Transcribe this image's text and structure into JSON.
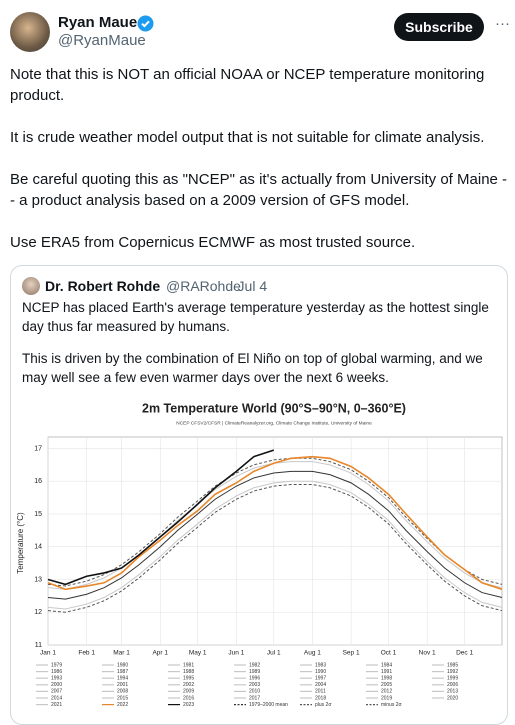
{
  "tweet": {
    "author": "Ryan Maue",
    "handle": "@RyanMaue",
    "button": "Subscribe",
    "more": "···",
    "paragraphs": [
      "Note that this is NOT an official NOAA or NCEP temperature monitoring product.",
      "It is crude weather model output that is not suitable for climate analysis.",
      "Be careful quoting this as \"NCEP\" as it's actually from University of Maine -- a product analysis based on a 2009 version of GFS model.",
      "Use ERA5 from Copernicus ECMWF as most trusted source."
    ]
  },
  "quote": {
    "author": "Dr. Robert Rohde",
    "handle": "@RARohde",
    "date": "· Jul 4",
    "paragraphs": [
      "NCEP has placed Earth's average temperature yesterday as the hottest single day thus far measured by humans.",
      "This is driven by the combination of El Niño on top of global warming, and we may well see a few even warmer days over the next 6 weeks."
    ]
  },
  "chart_data": {
    "type": "line",
    "title": "2m Temperature World (90°S–90°N, 0–360°E)",
    "subtitle": "NCEP CFSV2/CFSR | ClimateReanalyzer.org, Climate Change Institute, University of Maine",
    "y_label": "Temperature (°C)",
    "grid": true,
    "xlim": [
      1,
      365
    ],
    "ylim": [
      11,
      17.35
    ],
    "yticks": [
      11,
      12,
      13,
      14,
      15,
      16,
      17
    ],
    "xticks": [
      {
        "value": 1,
        "label": "Jan 1"
      },
      {
        "value": 32,
        "label": "Feb 1"
      },
      {
        "value": 60,
        "label": "Mar 1"
      },
      {
        "value": 91,
        "label": "Apr 1"
      },
      {
        "value": 121,
        "label": "May 1"
      },
      {
        "value": 152,
        "label": "Jun 1"
      },
      {
        "value": 182,
        "label": "Jul 1"
      },
      {
        "value": 213,
        "label": "Aug 1"
      },
      {
        "value": 244,
        "label": "Sep 1"
      },
      {
        "value": 274,
        "label": "Oct 1"
      },
      {
        "value": 305,
        "label": "Nov 1"
      },
      {
        "value": 335,
        "label": "Dec 1"
      }
    ],
    "x": [
      1,
      15,
      32,
      46,
      60,
      74,
      91,
      105,
      121,
      135,
      152,
      166,
      182,
      196,
      213,
      227,
      244,
      258,
      274,
      288,
      305,
      319,
      335,
      349,
      365
    ],
    "series": [
      {
        "color": "#c8c8c8",
        "dash": false,
        "values": [
          12.15,
          12.1,
          12.25,
          12.45,
          12.75,
          13.15,
          13.7,
          14.2,
          14.7,
          15.15,
          15.55,
          15.8,
          15.95,
          16.0,
          16.0,
          15.9,
          15.65,
          15.3,
          14.8,
          14.2,
          13.55,
          13.05,
          12.6,
          12.3,
          12.15
        ]
      },
      {
        "color": "#c8c8c8",
        "dash": false,
        "values": [
          12.75,
          12.7,
          12.85,
          13.05,
          13.35,
          13.75,
          14.3,
          14.8,
          15.3,
          15.75,
          16.15,
          16.4,
          16.55,
          16.6,
          16.6,
          16.5,
          16.25,
          15.9,
          15.4,
          14.8,
          14.15,
          13.65,
          13.2,
          12.9,
          12.75
        ]
      },
      {
        "color": "#555555",
        "dash": true,
        "values": [
          12.85,
          12.8,
          12.95,
          13.15,
          13.45,
          13.85,
          14.4,
          14.9,
          15.4,
          15.85,
          16.25,
          16.5,
          16.65,
          16.7,
          16.7,
          16.6,
          16.35,
          16.0,
          15.5,
          14.9,
          14.25,
          13.75,
          13.3,
          13.0,
          12.85
        ]
      },
      {
        "color": "#555555",
        "dash": true,
        "values": [
          12.05,
          12.0,
          12.15,
          12.35,
          12.65,
          13.05,
          13.6,
          14.1,
          14.6,
          15.05,
          15.45,
          15.7,
          15.85,
          15.9,
          15.9,
          15.8,
          15.55,
          15.2,
          14.7,
          14.1,
          13.45,
          12.95,
          12.5,
          12.2,
          12.05
        ]
      },
      {
        "color": "#333333",
        "dash": false,
        "values": [
          12.45,
          12.4,
          12.55,
          12.75,
          13.05,
          13.45,
          14.0,
          14.5,
          15.0,
          15.45,
          15.85,
          16.1,
          16.25,
          16.3,
          16.3,
          16.2,
          15.95,
          15.6,
          15.1,
          14.5,
          13.85,
          13.35,
          12.9,
          12.6,
          12.45
        ]
      },
      {
        "color": "#e8862a",
        "dash": false,
        "values": [
          12.9,
          12.7,
          12.8,
          12.9,
          13.2,
          13.7,
          14.2,
          14.65,
          15.1,
          15.6,
          15.95,
          16.3,
          16.55,
          16.7,
          16.75,
          16.7,
          16.45,
          16.1,
          15.6,
          15.0,
          14.3,
          13.75,
          13.3,
          12.9,
          12.7
        ]
      },
      {
        "color": "#111111",
        "dash": false,
        "values": [
          13.0,
          12.85,
          13.1,
          13.2,
          13.35,
          13.75,
          14.3,
          14.75,
          15.3,
          15.8,
          16.3,
          16.75,
          16.95,
          null,
          null,
          null,
          null,
          null,
          null,
          null,
          null,
          null,
          null,
          null,
          null
        ]
      }
    ],
    "legend": [
      {
        "name": "1979",
        "color": "#c8c8c8",
        "dash": false
      },
      {
        "name": "1980",
        "color": "#c8c8c8",
        "dash": false
      },
      {
        "name": "1981",
        "color": "#c8c8c8",
        "dash": false
      },
      {
        "name": "1982",
        "color": "#c8c8c8",
        "dash": false
      },
      {
        "name": "1983",
        "color": "#c8c8c8",
        "dash": false
      },
      {
        "name": "1984",
        "color": "#c8c8c8",
        "dash": false
      },
      {
        "name": "1985",
        "color": "#c8c8c8",
        "dash": false
      },
      {
        "name": "1986",
        "color": "#c8c8c8",
        "dash": false
      },
      {
        "name": "1987",
        "color": "#c8c8c8",
        "dash": false
      },
      {
        "name": "1988",
        "color": "#c8c8c8",
        "dash": false
      },
      {
        "name": "1989",
        "color": "#c8c8c8",
        "dash": false
      },
      {
        "name": "1990",
        "color": "#c8c8c8",
        "dash": false
      },
      {
        "name": "1991",
        "color": "#c8c8c8",
        "dash": false
      },
      {
        "name": "1992",
        "color": "#c8c8c8",
        "dash": false
      },
      {
        "name": "1993",
        "color": "#c8c8c8",
        "dash": false
      },
      {
        "name": "1994",
        "color": "#c8c8c8",
        "dash": false
      },
      {
        "name": "1995",
        "color": "#c8c8c8",
        "dash": false
      },
      {
        "name": "1996",
        "color": "#c8c8c8",
        "dash": false
      },
      {
        "name": "1997",
        "color": "#c8c8c8",
        "dash": false
      },
      {
        "name": "1998",
        "color": "#c8c8c8",
        "dash": false
      },
      {
        "name": "1999",
        "color": "#c8c8c8",
        "dash": false
      },
      {
        "name": "2000",
        "color": "#c8c8c8",
        "dash": false
      },
      {
        "name": "2001",
        "color": "#c8c8c8",
        "dash": false
      },
      {
        "name": "2002",
        "color": "#c8c8c8",
        "dash": false
      },
      {
        "name": "2003",
        "color": "#c8c8c8",
        "dash": false
      },
      {
        "name": "2004",
        "color": "#c8c8c8",
        "dash": false
      },
      {
        "name": "2005",
        "color": "#c8c8c8",
        "dash": false
      },
      {
        "name": "2006",
        "color": "#c8c8c8",
        "dash": false
      },
      {
        "name": "2007",
        "color": "#c8c8c8",
        "dash": false
      },
      {
        "name": "2008",
        "color": "#c8c8c8",
        "dash": false
      },
      {
        "name": "2009",
        "color": "#c8c8c8",
        "dash": false
      },
      {
        "name": "2010",
        "color": "#c8c8c8",
        "dash": false
      },
      {
        "name": "2011",
        "color": "#c8c8c8",
        "dash": false
      },
      {
        "name": "2012",
        "color": "#c8c8c8",
        "dash": false
      },
      {
        "name": "2013",
        "color": "#c8c8c8",
        "dash": false
      },
      {
        "name": "2014",
        "color": "#c8c8c8",
        "dash": false
      },
      {
        "name": "2015",
        "color": "#c8c8c8",
        "dash": false
      },
      {
        "name": "2016",
        "color": "#c8c8c8",
        "dash": false
      },
      {
        "name": "2017",
        "color": "#c8c8c8",
        "dash": false
      },
      {
        "name": "2018",
        "color": "#c8c8c8",
        "dash": false
      },
      {
        "name": "2019",
        "color": "#c8c8c8",
        "dash": false
      },
      {
        "name": "2020",
        "color": "#c8c8c8",
        "dash": false
      },
      {
        "name": "2021",
        "color": "#c8c8c8",
        "dash": false
      },
      {
        "name": "2022",
        "color": "#e8862a",
        "dash": false
      },
      {
        "name": "2023",
        "color": "#111111",
        "dash": false
      },
      {
        "name": "1979–2000 mean",
        "color": "#333333",
        "dash": true
      },
      {
        "name": "plus 2σ",
        "color": "#555555",
        "dash": true
      },
      {
        "name": "minus 2σ",
        "color": "#555555",
        "dash": true
      }
    ]
  }
}
